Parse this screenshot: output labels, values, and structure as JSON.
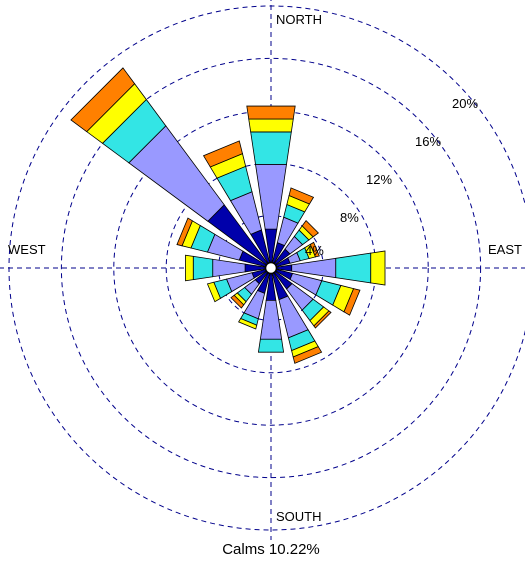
{
  "chart_data": {
    "type": "wind-rose",
    "direction_labels": {
      "north": "NORTH",
      "south": "SOUTH",
      "west": "WEST",
      "east": "EAST"
    },
    "ring_values": [
      4,
      8,
      12,
      16,
      20
    ],
    "ring_labels": [
      "4%",
      "8%",
      "12%",
      "16%",
      "20%"
    ],
    "calms_label": "Calms 10.22%",
    "calm_percent": 10.22,
    "colors": {
      "speed_bins": [
        "#0000ab",
        "#9999ff",
        "#33e5e5",
        "#ffff00",
        "#ff8000"
      ],
      "grid": "#00008b",
      "outline": "#000000"
    },
    "grid": true,
    "directions": [
      {
        "direction_deg": 0,
        "cumulative_percent": [
          3,
          8,
          10.5,
          11.5,
          12.5
        ]
      },
      {
        "direction_deg": 22.5,
        "cumulative_percent": [
          2,
          4,
          5,
          5.7,
          6.3
        ]
      },
      {
        "direction_deg": 45,
        "cumulative_percent": [
          1.8,
          3,
          3.6,
          4,
          4.5
        ]
      },
      {
        "direction_deg": 67.5,
        "cumulative_percent": [
          1.5,
          2.3,
          3,
          3.5,
          3.8
        ]
      },
      {
        "direction_deg": 90,
        "cumulative_percent": [
          1.6,
          5,
          7.7,
          8.8,
          8.8
        ]
      },
      {
        "direction_deg": 112.5,
        "cumulative_percent": [
          1.7,
          4,
          5.5,
          6.5,
          7
        ]
      },
      {
        "direction_deg": 135,
        "cumulative_percent": [
          2,
          4,
          5,
          5.5,
          5.7
        ]
      },
      {
        "direction_deg": 157.5,
        "cumulative_percent": [
          2.5,
          5.5,
          6.5,
          7,
          7.5
        ]
      },
      {
        "direction_deg": 180,
        "cumulative_percent": [
          2.5,
          5.5,
          6.5,
          6.5,
          6.5
        ]
      },
      {
        "direction_deg": 202.5,
        "cumulative_percent": [
          2,
          4,
          4.5,
          4.8,
          4.8
        ]
      },
      {
        "direction_deg": 225,
        "cumulative_percent": [
          1.5,
          2.5,
          3.2,
          3.5,
          3.8
        ]
      },
      {
        "direction_deg": 247.5,
        "cumulative_percent": [
          1.5,
          3.5,
          4.5,
          5,
          5
        ]
      },
      {
        "direction_deg": 270,
        "cumulative_percent": [
          2,
          4.5,
          6,
          6.6,
          6.6
        ]
      },
      {
        "direction_deg": 292.5,
        "cumulative_percent": [
          2.5,
          5,
          6.3,
          7,
          7.4
        ]
      },
      {
        "direction_deg": 315,
        "cumulative_percent": [
          6,
          13.5,
          16,
          17.5,
          19
        ]
      },
      {
        "direction_deg": 337.5,
        "cumulative_percent": [
          3,
          6,
          8,
          9,
          10
        ]
      }
    ]
  }
}
